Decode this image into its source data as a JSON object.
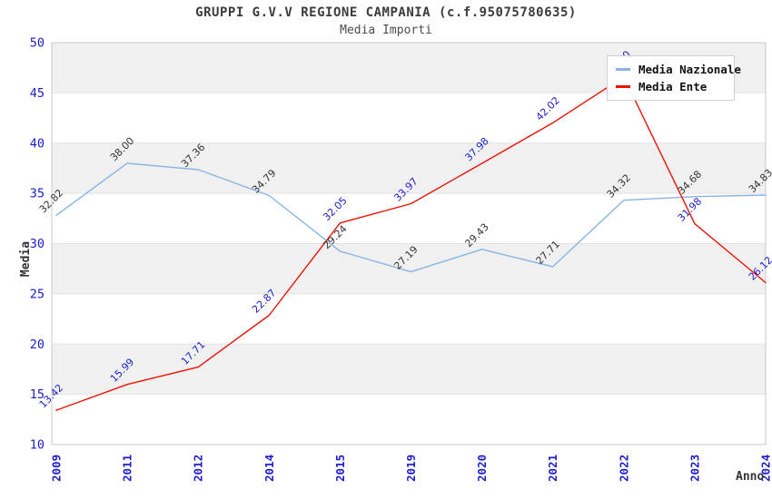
{
  "header": {
    "title": "GRUPPI G.V.V REGIONE CAMPANIA (c.f.95075780635)",
    "subtitle": "Media Importi"
  },
  "legend": {
    "position": "top-right",
    "items": [
      {
        "label": "Media Nazionale",
        "color": "#88b4e4"
      },
      {
        "label": "Media Ente",
        "color": "#ee1105"
      }
    ]
  },
  "axes": {
    "x_title": "Anno",
    "y_title": "Media",
    "y_ticks": [
      10,
      15,
      20,
      25,
      30,
      35,
      40,
      45,
      50
    ]
  },
  "colors": {
    "band_fill": "#f0f0f0",
    "gridline": "#e4e4e4",
    "plot_border": "#c9c9c9",
    "tick_text": "#1c1ccd",
    "title_text": "#3b3b3b",
    "axis_title_text": "#333333",
    "series_nazionale": "#88b4e4",
    "series_ente": "#ee1105",
    "label_nazionale_text": "#333333",
    "label_ente_text": "#1c1ccd"
  },
  "chart_data": {
    "type": "line",
    "title": "GRUPPI G.V.V REGIONE CAMPANIA (c.f.95075780635)",
    "subtitle": "Media Importi",
    "xlabel": "Anno",
    "ylabel": "Media",
    "ylim": [
      10,
      50
    ],
    "ytick_step": 5,
    "grid": "horizontal-bands",
    "legend_position": "top-right",
    "point_labels": "all-points, 2 decimals, rotated 45deg",
    "categories": [
      "2009",
      "2011",
      "2012",
      "2014",
      "2015",
      "2019",
      "2020",
      "2021",
      "2022",
      "2023",
      "2024"
    ],
    "series": [
      {
        "name": "Media Nazionale",
        "color": "#88b4e4",
        "label_color": "#333333",
        "values": [
          32.82,
          38.0,
          37.36,
          34.79,
          29.24,
          27.19,
          29.43,
          27.71,
          34.32,
          34.68,
          34.83
        ]
      },
      {
        "name": "Media Ente",
        "color": "#ee1105",
        "label_color": "#1c1ccd",
        "values": [
          13.42,
          15.99,
          17.71,
          22.87,
          32.05,
          33.97,
          37.98,
          42.02,
          46.6,
          31.98,
          26.12
        ]
      }
    ]
  }
}
